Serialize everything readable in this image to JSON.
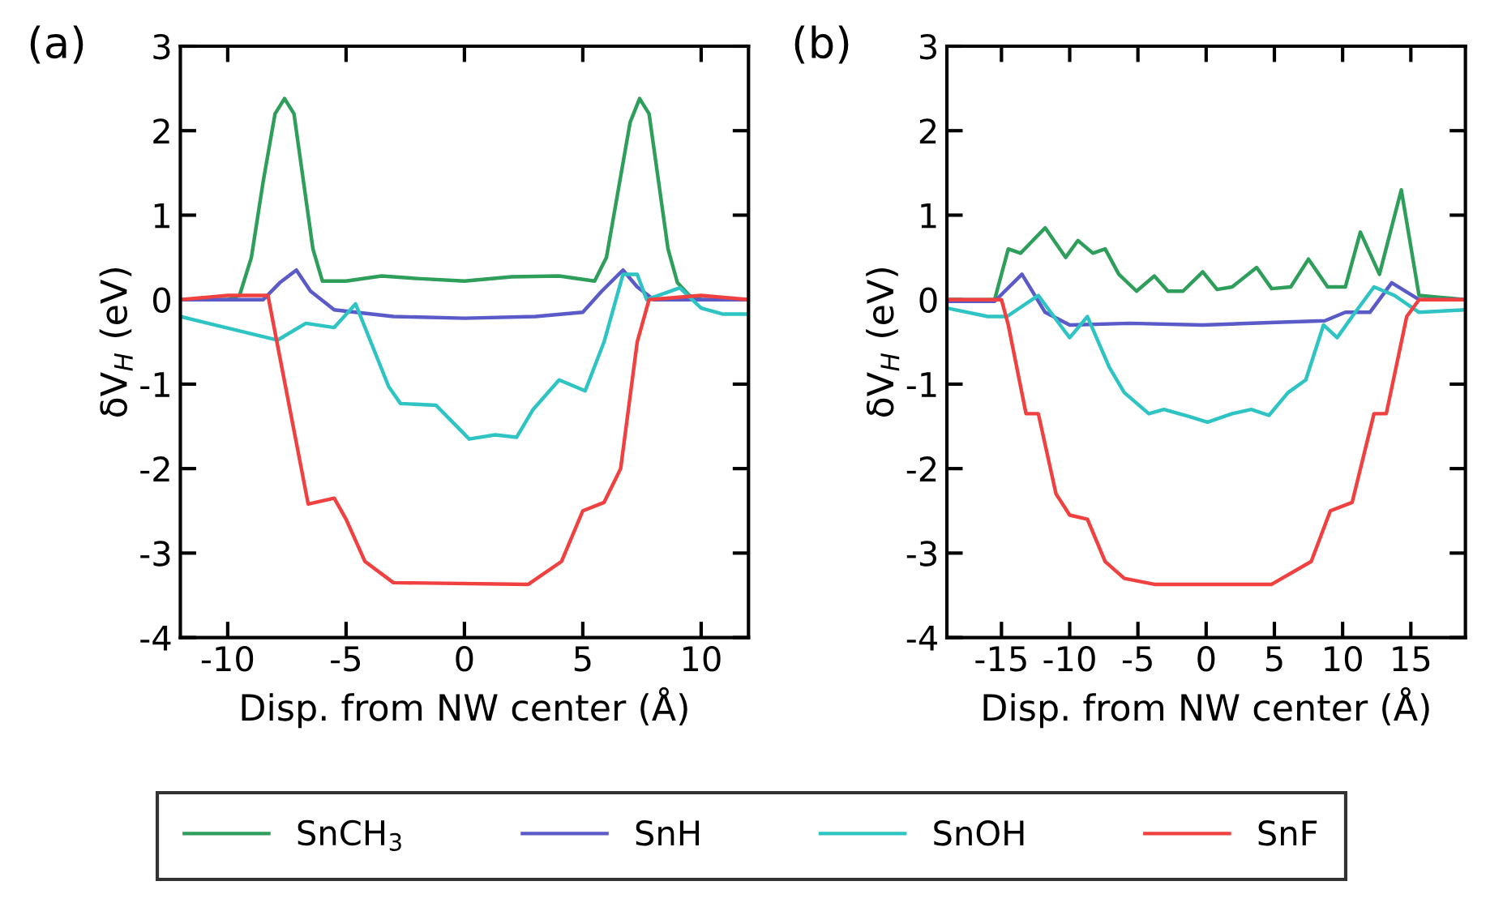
{
  "chart_data": [
    {
      "type": "line",
      "title": "(a)",
      "xlabel": "Disp. from NW center (Å)",
      "ylabel": "δV$_{H}$ (eV)",
      "xlim": [
        -12,
        12
      ],
      "xticks": [
        -10,
        -5,
        0,
        5,
        10
      ],
      "ylim": [
        -4,
        3
      ],
      "yticks": [
        -4,
        -3,
        -2,
        -1,
        0,
        1,
        2,
        3
      ],
      "grid": false,
      "legend": "bottom",
      "line_style": "solid",
      "marker": "none",
      "series": [
        {
          "name": "SnCH$_{3}$",
          "color": "#2e9e5b",
          "x": [
            -12,
            -10,
            -9.5,
            -9,
            -8.5,
            -8,
            -7.6,
            -7.2,
            -6.8,
            -6.4,
            -6,
            -5,
            -3.5,
            -2,
            0,
            2,
            4,
            5.5,
            6,
            6.5,
            7,
            7.4,
            7.8,
            8.2,
            8.6,
            9,
            9.5,
            10,
            12
          ],
          "values": [
            0,
            0,
            0.05,
            0.5,
            1.4,
            2.2,
            2.38,
            2.2,
            1.4,
            0.6,
            0.22,
            0.22,
            0.28,
            0.25,
            0.22,
            0.27,
            0.28,
            0.22,
            0.5,
            1.3,
            2.1,
            2.38,
            2.2,
            1.4,
            0.6,
            0.2,
            0.05,
            0,
            0
          ]
        },
        {
          "name": "SnH",
          "color": "#5a5ac8",
          "x": [
            -12,
            -8.5,
            -7.8,
            -7.1,
            -6.5,
            -5.5,
            -3,
            0,
            3,
            5,
            5.8,
            6.7,
            7.3,
            8,
            12
          ],
          "values": [
            0,
            0,
            0.2,
            0.35,
            0.1,
            -0.12,
            -0.2,
            -0.22,
            -0.2,
            -0.15,
            0.1,
            0.35,
            0.15,
            0,
            0
          ]
        },
        {
          "name": "SnOH",
          "color": "#2ec4c4",
          "x": [
            -12,
            -7.9,
            -6.7,
            -5.5,
            -4.6,
            -3.2,
            -2.7,
            -1.2,
            0.2,
            1.3,
            2.2,
            2.9,
            4.0,
            5.1,
            5.9,
            6.7,
            7.3,
            7.7,
            9.1,
            10,
            10.9,
            12
          ],
          "values": [
            -0.2,
            -0.48,
            -0.28,
            -0.33,
            -0.05,
            -1.03,
            -1.23,
            -1.25,
            -1.65,
            -1.6,
            -1.63,
            -1.3,
            -0.95,
            -1.08,
            -0.5,
            0.3,
            0.3,
            0,
            0.14,
            -0.1,
            -0.17,
            -0.17
          ]
        },
        {
          "name": "SnF",
          "color": "#f04040",
          "x": [
            -12,
            -10,
            -8.3,
            -6.6,
            -5.5,
            -5,
            -4.2,
            -3,
            2.7,
            4.1,
            5.0,
            5.9,
            6.6,
            7.3,
            7.8,
            10,
            12
          ],
          "values": [
            0,
            0.05,
            0.05,
            -2.42,
            -2.35,
            -2.6,
            -3.1,
            -3.35,
            -3.37,
            -3.1,
            -2.5,
            -2.4,
            -2.0,
            -0.5,
            0,
            0.05,
            0
          ]
        }
      ]
    },
    {
      "type": "line",
      "title": "(b)",
      "xlabel": "Disp. from NW center (Å)",
      "ylabel": "δV$_{H}$ (eV)",
      "xlim": [
        -19,
        19
      ],
      "xticks": [
        -15,
        -10,
        -5,
        0,
        5,
        10,
        15
      ],
      "ylim": [
        -4,
        3
      ],
      "yticks": [
        -4,
        -3,
        -2,
        -1,
        0,
        1,
        2,
        3
      ],
      "grid": false,
      "line_style": "solid",
      "marker": "none",
      "series": [
        {
          "color": "#2e9e5b",
          "x": [
            -19,
            -15.5,
            -14.5,
            -13.6,
            -11.8,
            -10.3,
            -9.4,
            -8.3,
            -7.4,
            -6.4,
            -5.1,
            -3.8,
            -2.8,
            -1.7,
            -0.25,
            0.8,
            1.9,
            3.7,
            4.8,
            6.2,
            7.5,
            8.9,
            10.2,
            11.3,
            12.7,
            14.3,
            15.6,
            19
          ],
          "values": [
            0,
            0,
            0.6,
            0.55,
            0.85,
            0.5,
            0.7,
            0.55,
            0.6,
            0.3,
            0.1,
            0.28,
            0.1,
            0.1,
            0.33,
            0.12,
            0.15,
            0.38,
            0.13,
            0.15,
            0.48,
            0.15,
            0.15,
            0.8,
            0.3,
            1.3,
            0.05,
            0
          ]
        },
        {
          "color": "#5a5ac8",
          "x": [
            -19,
            -15.5,
            -13.5,
            -11.8,
            -10,
            -5.6,
            -0.25,
            5.1,
            8.7,
            10.2,
            12,
            13.6,
            15.6,
            19
          ],
          "values": [
            -0.02,
            -0.02,
            0.3,
            -0.15,
            -0.3,
            -0.28,
            -0.3,
            -0.27,
            -0.25,
            -0.15,
            -0.15,
            0.2,
            0,
            0
          ]
        },
        {
          "color": "#2ec4c4",
          "x": [
            -19,
            -16,
            -14.6,
            -12.3,
            -10.7,
            -10,
            -8.7,
            -7.1,
            -6,
            -4.2,
            -3.1,
            -1.3,
            0.1,
            1.9,
            3.3,
            4.6,
            6.0,
            7.3,
            8.6,
            9.6,
            10.7,
            12.3,
            13.8,
            15.6,
            19
          ],
          "values": [
            -0.1,
            -0.2,
            -0.2,
            0.05,
            -0.3,
            -0.45,
            -0.2,
            -0.8,
            -1.1,
            -1.35,
            -1.3,
            -1.38,
            -1.45,
            -1.35,
            -1.3,
            -1.37,
            -1.1,
            -0.95,
            -0.3,
            -0.45,
            -0.2,
            0.15,
            0.05,
            -0.15,
            -0.12
          ]
        },
        {
          "color": "#f04040",
          "x": [
            -19,
            -15,
            -14.5,
            -13.2,
            -12.3,
            -11,
            -10,
            -8.7,
            -7.4,
            -6,
            -3.8,
            4.8,
            7.7,
            9.1,
            10.7,
            12.3,
            13.2,
            14.7,
            15.6,
            19
          ],
          "values": [
            0,
            0,
            -0.3,
            -1.35,
            -1.35,
            -2.3,
            -2.55,
            -2.6,
            -3.1,
            -3.3,
            -3.37,
            -3.37,
            -3.1,
            -2.5,
            -2.4,
            -1.35,
            -1.35,
            -0.2,
            0,
            0
          ]
        }
      ]
    }
  ]
}
